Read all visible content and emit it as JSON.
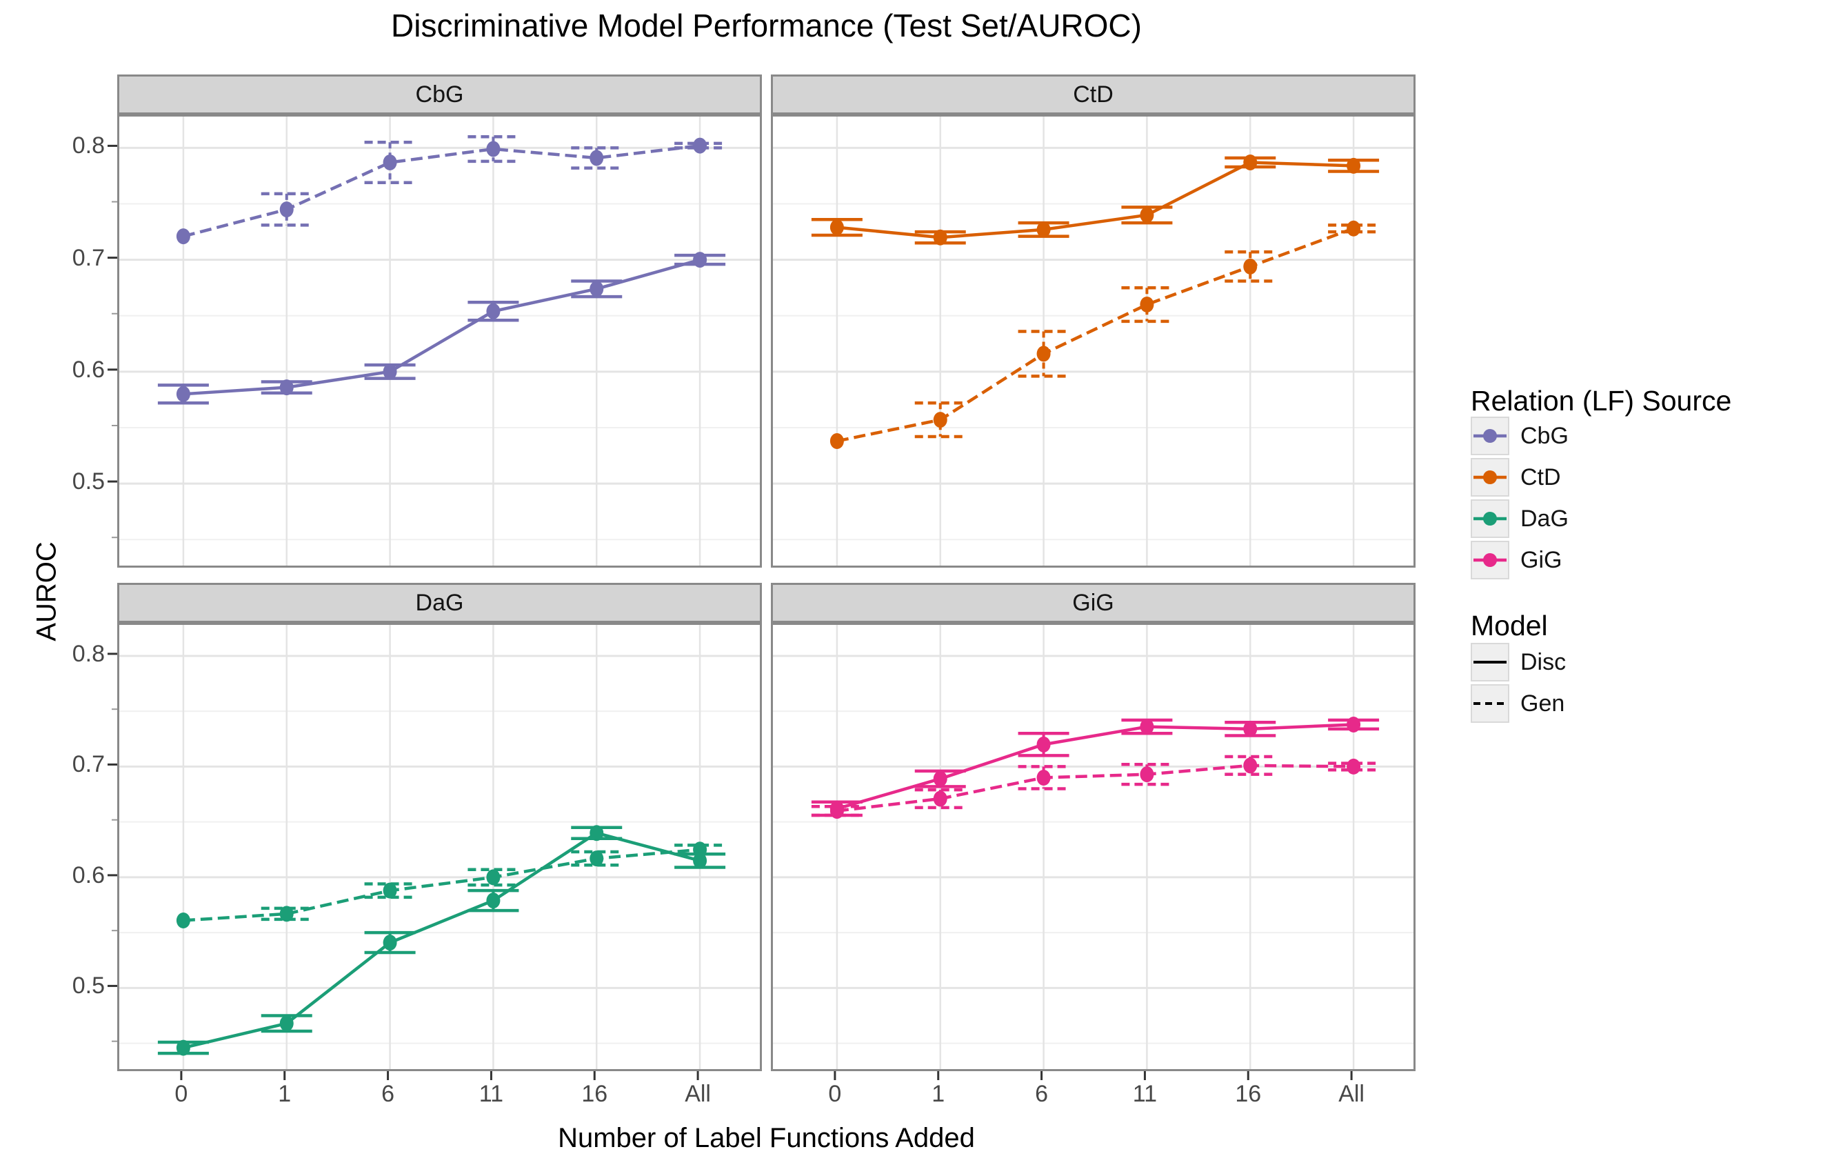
{
  "title": "Discriminative Model Performance (Test Set/AUROC)",
  "axes": {
    "x_title": "Number of Label Functions Added",
    "y_title": "AUROC",
    "x_ticks": [
      "0",
      "1",
      "6",
      "11",
      "16",
      "All"
    ],
    "y_tick_labels": [
      "0.8",
      "0.7",
      "0.6",
      "0.5"
    ]
  },
  "legend": {
    "source_title": "Relation (LF) Source",
    "sources": [
      {
        "label": "CbG",
        "color": "#7570b3"
      },
      {
        "label": "CtD",
        "color": "#d95f02"
      },
      {
        "label": "DaG",
        "color": "#1b9e77"
      },
      {
        "label": "GiG",
        "color": "#e7298a"
      }
    ],
    "model_title": "Model",
    "models": [
      {
        "label": "Disc",
        "style": "solid"
      },
      {
        "label": "Gen",
        "style": "dashed"
      }
    ]
  },
  "chart_data": {
    "type": "line",
    "title": "Discriminative Model Performance (Test Set/AUROC)",
    "xlabel": "Number of Label Functions Added",
    "ylabel": "AUROC",
    "x_categories": [
      "0",
      "1",
      "6",
      "11",
      "16",
      "All"
    ],
    "y_major_ticks": [
      0.8,
      0.7,
      0.6,
      0.5
    ],
    "y_minor_ticks": [
      0.75,
      0.65,
      0.55,
      0.45
    ],
    "ylim": [
      0.423,
      0.828
    ],
    "grid": true,
    "legend_position": "right",
    "facets": [
      {
        "name": "CbG",
        "color": "#7570b3",
        "series": [
          {
            "name": "Disc",
            "linestyle": "solid",
            "values": [
              0.58,
              0.586,
              0.6,
              0.654,
              0.674,
              0.7
            ],
            "errors": [
              0.008,
              0.005,
              0.006,
              0.008,
              0.007,
              0.004
            ]
          },
          {
            "name": "Gen",
            "linestyle": "dashed",
            "values": [
              0.721,
              0.745,
              0.787,
              0.799,
              0.791,
              0.802
            ],
            "errors": [
              0,
              0.014,
              0.018,
              0.011,
              0.009,
              0.002
            ]
          }
        ]
      },
      {
        "name": "CtD",
        "color": "#d95f02",
        "series": [
          {
            "name": "Disc",
            "linestyle": "solid",
            "values": [
              0.729,
              0.72,
              0.727,
              0.74,
              0.787,
              0.784
            ],
            "errors": [
              0.007,
              0.005,
              0.006,
              0.007,
              0.004,
              0.005
            ]
          },
          {
            "name": "Gen",
            "linestyle": "dashed",
            "values": [
              0.538,
              0.557,
              0.616,
              0.66,
              0.694,
              0.728
            ],
            "errors": [
              0,
              0.015,
              0.02,
              0.015,
              0.013,
              0.003
            ]
          }
        ]
      },
      {
        "name": "DaG",
        "color": "#1b9e77",
        "series": [
          {
            "name": "Disc",
            "linestyle": "solid",
            "values": [
              0.446,
              0.468,
              0.541,
              0.579,
              0.64,
              0.615
            ],
            "errors": [
              0.005,
              0.007,
              0.009,
              0.009,
              0.005,
              0.006
            ]
          },
          {
            "name": "Gen",
            "linestyle": "dashed",
            "values": [
              0.561,
              0.567,
              0.588,
              0.6,
              0.617,
              0.625
            ],
            "errors": [
              0,
              0.005,
              0.006,
              0.007,
              0.006,
              0.004
            ]
          }
        ]
      },
      {
        "name": "GiG",
        "color": "#e7298a",
        "series": [
          {
            "name": "Disc",
            "linestyle": "solid",
            "values": [
              0.662,
              0.689,
              0.72,
              0.736,
              0.734,
              0.738
            ],
            "errors": [
              0.006,
              0.007,
              0.01,
              0.006,
              0.006,
              0.004
            ]
          },
          {
            "name": "Gen",
            "linestyle": "dashed",
            "values": [
              0.66,
              0.671,
              0.69,
              0.693,
              0.701,
              0.7
            ],
            "errors": [
              0.004,
              0.008,
              0.01,
              0.009,
              0.008,
              0.003
            ]
          }
        ]
      }
    ]
  }
}
